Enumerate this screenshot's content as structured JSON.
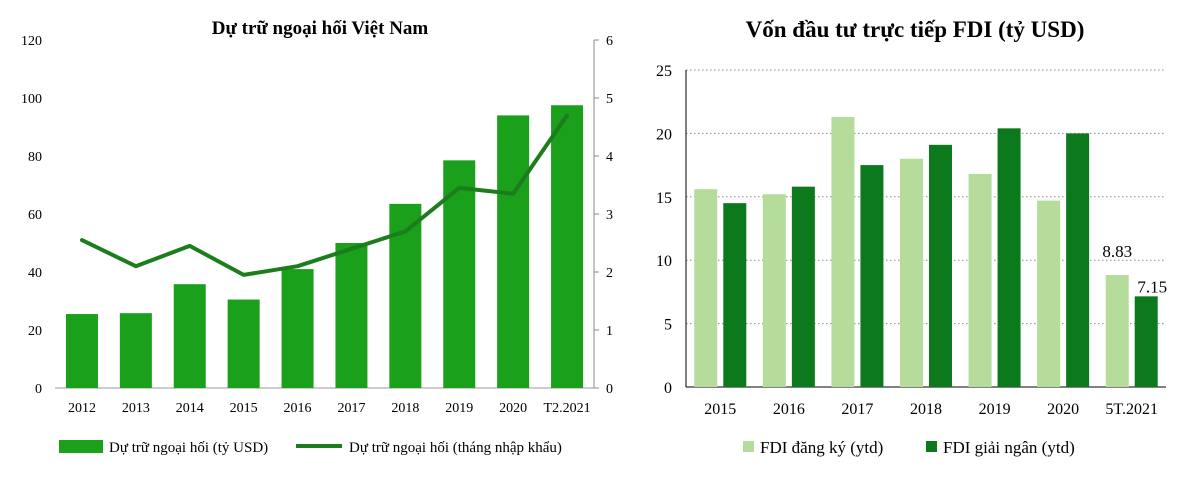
{
  "chart_data": [
    {
      "type": "bar",
      "title": "Dự trữ ngoại hối Việt Nam",
      "categories": [
        "2012",
        "2013",
        "2014",
        "2015",
        "2016",
        "2017",
        "2018",
        "2019",
        "2020",
        "T2.2021"
      ],
      "series": [
        {
          "name": "Dự trữ ngoại hối (tỷ USD)",
          "kind": "bar",
          "axis": "left",
          "color": "#1aa01a",
          "values": [
            25.5,
            25.8,
            35.8,
            30.5,
            41,
            50,
            63.5,
            78.5,
            94,
            97.5
          ]
        },
        {
          "name": "Dự trữ ngoại hối (tháng nhập khẩu)",
          "kind": "line",
          "axis": "right",
          "color": "#1b7d1b",
          "values": [
            2.55,
            2.1,
            2.45,
            1.95,
            2.1,
            2.4,
            2.7,
            3.45,
            3.35,
            4.7
          ]
        }
      ],
      "y_left": {
        "min": 0,
        "max": 120,
        "ticks": [
          "0",
          "20",
          "40",
          "60",
          "80",
          "100",
          "120"
        ]
      },
      "y_right": {
        "min": 0,
        "max": 6,
        "ticks": [
          "0",
          "1",
          "2",
          "3",
          "4",
          "5",
          "6"
        ]
      },
      "grid": false,
      "legend": "bottom"
    },
    {
      "type": "bar",
      "title": "Vốn đầu tư trực tiếp FDI (tỷ USD)",
      "categories": [
        "2015",
        "2016",
        "2017",
        "2018",
        "2019",
        "2020",
        "5T.2021"
      ],
      "series": [
        {
          "name": "FDI đăng ký (ytd)",
          "color": "#b5dc9a",
          "values": [
            15.6,
            15.2,
            21.3,
            18,
            16.8,
            14.7,
            8.83
          ],
          "data_labels": [
            "",
            "",
            "",
            "",
            "",
            "",
            "8.83"
          ]
        },
        {
          "name": "FDI giải ngân (ytd)",
          "color": "#0c7a1c",
          "values": [
            14.5,
            15.8,
            17.5,
            19.1,
            20.4,
            20,
            7.15
          ],
          "data_labels": [
            "",
            "",
            "",
            "",
            "",
            "",
            "7.15"
          ]
        }
      ],
      "y": {
        "min": 0,
        "max": 25,
        "ticks": [
          "0",
          "5",
          "10",
          "15",
          "20",
          "25"
        ]
      },
      "grid": true,
      "grid_style": "dotted",
      "legend": "bottom"
    }
  ]
}
